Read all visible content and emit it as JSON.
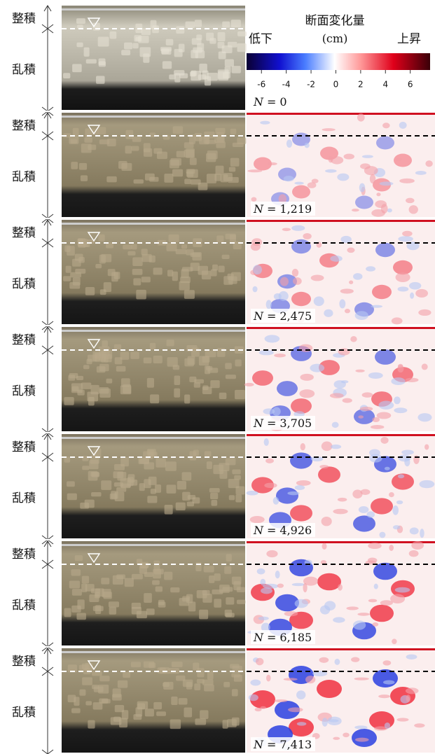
{
  "labels": {
    "upper_layer": "整積",
    "lower_layer": "乱積"
  },
  "colorbar": {
    "title": "断面変化量",
    "low_label": "低下",
    "unit": "(cm)",
    "high_label": "上昇",
    "range": [
      -7.2,
      7.6
    ],
    "ticks": [
      -6,
      -4,
      -2,
      0,
      2,
      4,
      6
    ]
  },
  "variable": "N",
  "equals": "=",
  "rows": [
    {
      "n": "0"
    },
    {
      "n": "1,219"
    },
    {
      "n": "2,475"
    },
    {
      "n": "3,705"
    },
    {
      "n": "4,926"
    },
    {
      "n": "6,185"
    },
    {
      "n": "7,413"
    }
  ]
}
